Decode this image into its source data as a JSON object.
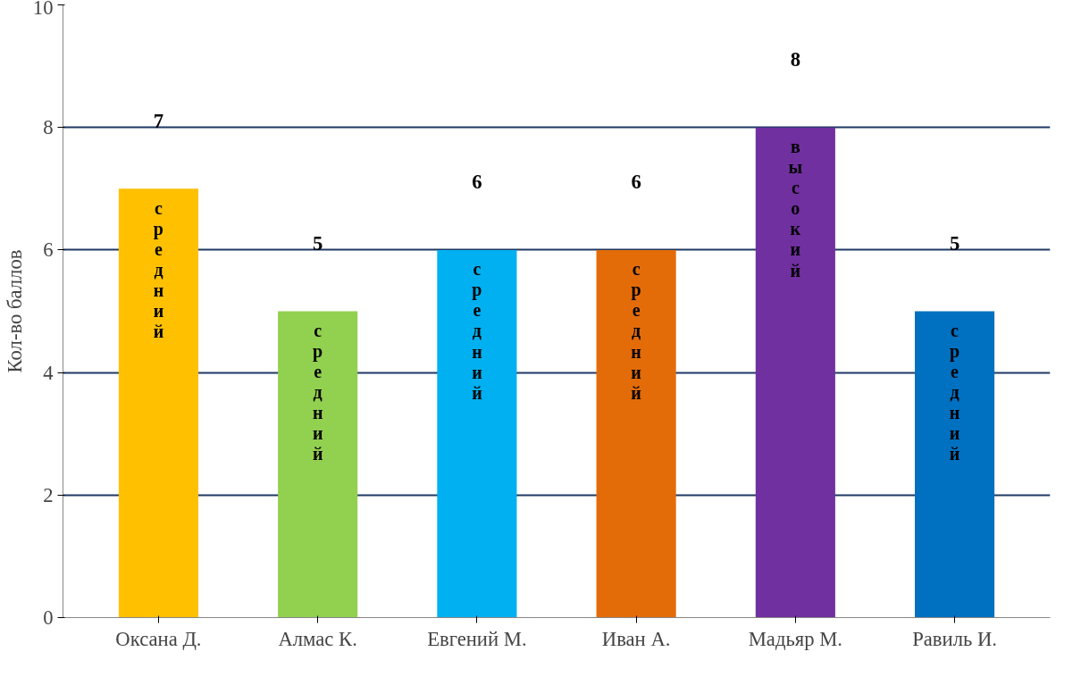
{
  "chart_data": {
    "type": "bar",
    "ylabel": "Кол-во баллов",
    "categories": [
      "Оксана Д.",
      "Алмас К.",
      "Евгений М.",
      "Иван А.",
      "Мадьяр М.",
      "Равиль И."
    ],
    "values": [
      7,
      5,
      6,
      6,
      8,
      5
    ],
    "colors": [
      "#ffc000",
      "#92d050",
      "#00b0f0",
      "#e36c09",
      "#7030a0",
      "#0070c0"
    ],
    "ylim": [
      0,
      10
    ],
    "yticks": [
      0,
      2,
      4,
      6,
      8,
      10
    ],
    "grid": "y",
    "data_labels": true,
    "annotations": [
      "средний",
      "средний",
      "средний",
      "средний",
      "высокий",
      "средний"
    ]
  }
}
